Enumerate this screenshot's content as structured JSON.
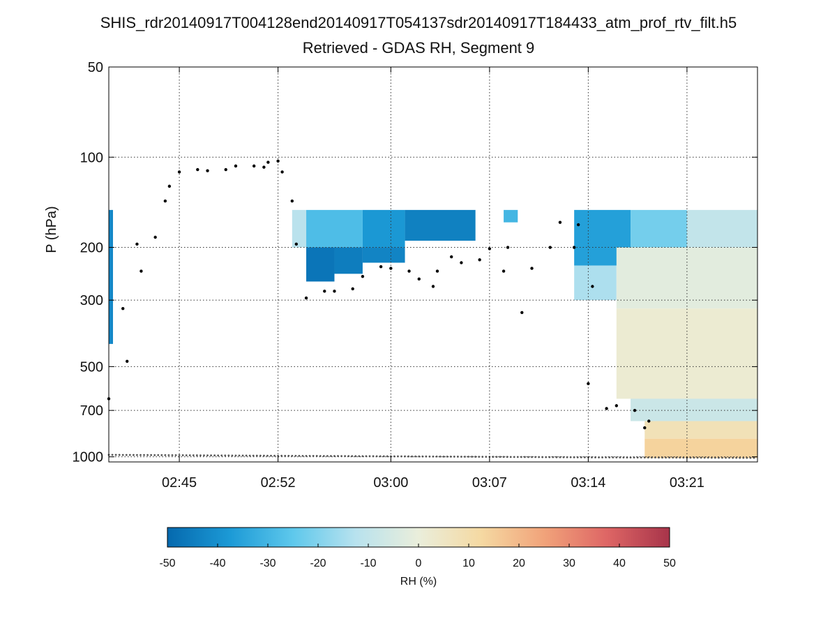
{
  "chart_data": {
    "type": "heatmap",
    "title": "SHIS_rdr20140917T004128end20140917T054137sdr20140917T184433_atm_prof_rtv_filt.h5",
    "subtitle": "Retrieved - GDAS RH, Segment 9",
    "ylabel": "P (hPa)",
    "y_scale": "log",
    "y_reversed": true,
    "ylim": [
      1040,
      50
    ],
    "y_ticks": [
      {
        "v": 50,
        "label": "50"
      },
      {
        "v": 100,
        "label": "100"
      },
      {
        "v": 200,
        "label": "200"
      },
      {
        "v": 300,
        "label": "300"
      },
      {
        "v": 500,
        "label": "500"
      },
      {
        "v": 700,
        "label": "700"
      },
      {
        "v": 1000,
        "label": "1000"
      }
    ],
    "xlim": [
      "02:40",
      "03:26"
    ],
    "x_ticks": [
      "02:45",
      "02:52",
      "03:00",
      "03:07",
      "03:14",
      "03:21"
    ],
    "grid": true,
    "colorbar": {
      "label": "RH (%)",
      "range": [
        -50,
        50
      ],
      "ticks": [
        "-50",
        "-40",
        "-30",
        "-20",
        "-10",
        "0",
        "10",
        "20",
        "30",
        "40",
        "50"
      ],
      "colors": [
        "#0569ae",
        "#1c9ad6",
        "#5ec8ec",
        "#b8e2ee",
        "#eaeedb",
        "#f5d9a2",
        "#f1a37a",
        "#de6665",
        "#a7344a"
      ]
    },
    "rh_regions": [
      {
        "t0": "02:40",
        "t1": "02:40",
        "p_top": 150,
        "p_bot": 420,
        "rh": -42
      },
      {
        "t0": "02:53",
        "t1": "02:54",
        "p_top": 150,
        "p_bot": 200,
        "rh": -12
      },
      {
        "t0": "02:54",
        "t1": "02:58",
        "p_top": 150,
        "p_bot": 200,
        "rh": -28
      },
      {
        "t0": "02:58",
        "t1": "03:01",
        "p_top": 150,
        "p_bot": 200,
        "rh": -38
      },
      {
        "t0": "03:01",
        "t1": "03:06",
        "p_top": 150,
        "p_bot": 190,
        "rh": -44
      },
      {
        "t0": "02:54",
        "t1": "02:56",
        "p_top": 200,
        "p_bot": 260,
        "rh": -47
      },
      {
        "t0": "02:56",
        "t1": "02:58",
        "p_top": 200,
        "p_bot": 245,
        "rh": -45
      },
      {
        "t0": "02:58",
        "t1": "03:01",
        "p_top": 200,
        "p_bot": 225,
        "rh": -43
      },
      {
        "t0": "03:08",
        "t1": "03:09",
        "p_top": 150,
        "p_bot": 165,
        "rh": -30
      },
      {
        "t0": "03:13",
        "t1": "03:17",
        "p_top": 150,
        "p_bot": 230,
        "rh": -36
      },
      {
        "t0": "03:17",
        "t1": "03:21",
        "p_top": 150,
        "p_bot": 200,
        "rh": -22
      },
      {
        "t0": "03:21",
        "t1": "03:26",
        "p_top": 150,
        "p_bot": 200,
        "rh": -10
      },
      {
        "t0": "03:13",
        "t1": "03:16",
        "p_top": 230,
        "p_bot": 300,
        "rh": -14
      },
      {
        "t0": "03:16",
        "t1": "03:26",
        "p_top": 200,
        "p_bot": 320,
        "rh": -2
      },
      {
        "t0": "03:16",
        "t1": "03:26",
        "p_top": 320,
        "p_bot": 640,
        "rh": 2
      },
      {
        "t0": "03:17",
        "t1": "03:26",
        "p_top": 640,
        "p_bot": 760,
        "rh": -8
      },
      {
        "t0": "03:18",
        "t1": "03:26",
        "p_top": 760,
        "p_bot": 870,
        "rh": 8
      },
      {
        "t0": "03:18",
        "t1": "03:26",
        "p_top": 870,
        "p_bot": 1010,
        "rh": 14
      }
    ],
    "series": [
      {
        "values": [
          {
            "t": "02:40",
            "p": 640
          },
          {
            "t": "02:41",
            "p": 480
          },
          {
            "t": "02:41",
            "p": 320
          },
          {
            "t": "02:42",
            "p": 240
          },
          {
            "t": "02:42",
            "p": 195
          },
          {
            "t": "02:43",
            "p": 185
          },
          {
            "t": "02:44",
            "p": 140
          },
          {
            "t": "02:44",
            "p": 125
          },
          {
            "t": "02:45",
            "p": 112
          },
          {
            "t": "02:46",
            "p": 110
          },
          {
            "t": "02:47",
            "p": 111
          },
          {
            "t": "02:48",
            "p": 110
          },
          {
            "t": "02:49",
            "p": 107
          },
          {
            "t": "02:50",
            "p": 107
          },
          {
            "t": "02:51",
            "p": 108
          },
          {
            "t": "02:51",
            "p": 104
          },
          {
            "t": "02:52",
            "p": 103
          },
          {
            "t": "02:52",
            "p": 112
          },
          {
            "t": "02:53",
            "p": 140
          },
          {
            "t": "02:53",
            "p": 195
          },
          {
            "t": "02:54",
            "p": 295
          },
          {
            "t": "02:55",
            "p": 280
          },
          {
            "t": "02:56",
            "p": 280
          },
          {
            "t": "02:57",
            "p": 275
          },
          {
            "t": "02:58",
            "p": 250
          },
          {
            "t": "02:59",
            "p": 232
          },
          {
            "t": "03:00",
            "p": 235
          },
          {
            "t": "03:01",
            "p": 240
          },
          {
            "t": "03:02",
            "p": 255
          },
          {
            "t": "03:03",
            "p": 240
          },
          {
            "t": "03:03",
            "p": 270
          },
          {
            "t": "03:04",
            "p": 215
          },
          {
            "t": "03:05",
            "p": 225
          },
          {
            "t": "03:06",
            "p": 220
          },
          {
            "t": "03:07",
            "p": 202
          },
          {
            "t": "03:08",
            "p": 200
          },
          {
            "t": "03:08",
            "p": 240
          },
          {
            "t": "03:09",
            "p": 330
          },
          {
            "t": "03:10",
            "p": 235
          },
          {
            "t": "03:11",
            "p": 200
          },
          {
            "t": "03:12",
            "p": 165
          },
          {
            "t": "03:13",
            "p": 168
          },
          {
            "t": "03:13",
            "p": 200
          },
          {
            "t": "03:14",
            "p": 270
          },
          {
            "t": "03:14",
            "p": 570
          },
          {
            "t": "03:15",
            "p": 690
          },
          {
            "t": "03:16",
            "p": 675
          },
          {
            "t": "03:17",
            "p": 700
          },
          {
            "t": "03:18",
            "p": 800
          },
          {
            "t": "03:18",
            "p": 760
          }
        ]
      },
      {
        "values": [
          {
            "t": "02:40",
            "p": 985
          },
          {
            "t": "02:45",
            "p": 988
          },
          {
            "t": "02:52",
            "p": 992
          },
          {
            "t": "03:00",
            "p": 996
          },
          {
            "t": "03:07",
            "p": 1000
          },
          {
            "t": "03:14",
            "p": 1004
          },
          {
            "t": "03:21",
            "p": 1006
          },
          {
            "t": "03:26",
            "p": 1008
          }
        ]
      }
    ]
  }
}
